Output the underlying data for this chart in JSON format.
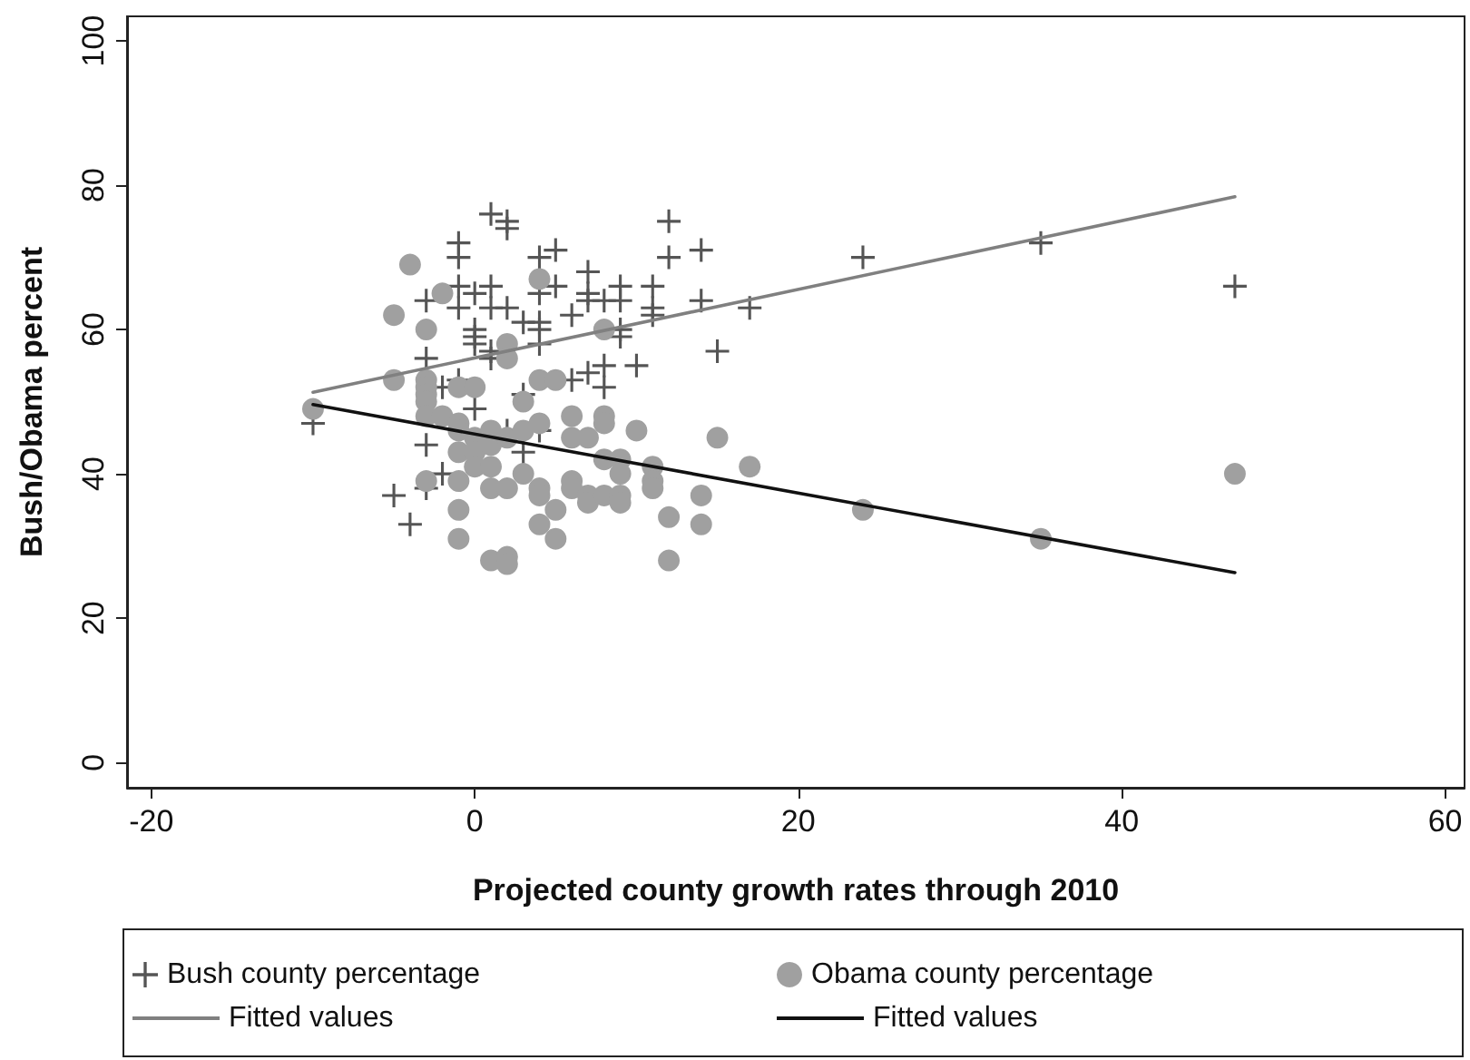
{
  "chart_data": {
    "type": "scatter",
    "xlabel": "Projected county growth rates through 2010",
    "ylabel": "Bush/Obama percent",
    "xlim": [
      -21.5,
      61.2
    ],
    "ylim": [
      -3.5,
      103.4
    ],
    "xticks": [
      -20,
      0,
      20,
      40,
      60
    ],
    "yticks": [
      0,
      20,
      40,
      60,
      80,
      100
    ],
    "grid": false,
    "legend": "bottom",
    "series": [
      {
        "name": "Bush county percentage",
        "marker": "cross",
        "color": "#555555",
        "x": [
          -10,
          -5,
          -4,
          -3,
          -3,
          -3,
          -3,
          -2,
          -2,
          -1,
          -1,
          -1,
          -1,
          -1,
          0,
          0,
          0,
          0,
          0,
          1,
          1,
          1,
          1,
          1,
          2,
          2,
          2,
          2,
          3,
          3,
          3,
          4,
          4,
          4,
          4,
          4,
          4,
          5,
          5,
          6,
          6,
          7,
          7,
          7,
          7,
          8,
          8,
          8,
          9,
          9,
          9,
          9,
          10,
          11,
          11,
          11,
          12,
          12,
          14,
          14,
          15,
          17,
          24,
          35,
          47
        ],
        "values": [
          47,
          37,
          33,
          64,
          56,
          44,
          38,
          40,
          52,
          72,
          70,
          66,
          63,
          53,
          65,
          60,
          59,
          58,
          49,
          76,
          66,
          63,
          57,
          56,
          75,
          74,
          63,
          46,
          61,
          51,
          43,
          70,
          65,
          61,
          60,
          58,
          46,
          71,
          66,
          62,
          53,
          68,
          65,
          64,
          54,
          64,
          55,
          52,
          66,
          64,
          60,
          59,
          55,
          66,
          63,
          62,
          75,
          70,
          71,
          64,
          57,
          63,
          70,
          72,
          66
        ]
      },
      {
        "name": "Obama county percentage",
        "marker": "circle",
        "color": "#a0a0a0",
        "x": [
          -10,
          -5,
          -5,
          -4,
          -3,
          -3,
          -3,
          -3,
          -3,
          -3,
          -3,
          -2,
          -2,
          -1,
          -1,
          -1,
          -1,
          -1,
          -1,
          -1,
          0,
          0,
          0,
          0,
          1,
          1,
          1,
          1,
          1,
          2,
          2,
          2,
          2,
          2,
          2,
          3,
          3,
          3,
          4,
          4,
          4,
          4,
          4,
          4,
          5,
          5,
          5,
          6,
          6,
          6,
          6,
          7,
          7,
          7,
          8,
          8,
          8,
          8,
          8,
          9,
          9,
          9,
          9,
          10,
          11,
          11,
          11,
          12,
          12,
          14,
          14,
          15,
          17,
          24,
          35,
          47
        ],
        "values": [
          49,
          62,
          53,
          69,
          60,
          53,
          52,
          51,
          50,
          48,
          39,
          65,
          48,
          52,
          47,
          46,
          43,
          39,
          35,
          31,
          52,
          45,
          43,
          41,
          46,
          44,
          41,
          38,
          28,
          58,
          56,
          45,
          38,
          28.5,
          27.5,
          50,
          46,
          40,
          67,
          53,
          47,
          38,
          37,
          33,
          53,
          35,
          31,
          48,
          45,
          39,
          38,
          45,
          37,
          36,
          60,
          48,
          47,
          42,
          37,
          42,
          40,
          37,
          36,
          46,
          41,
          39,
          38,
          34,
          28,
          37,
          33,
          45,
          41,
          35,
          31,
          40
        ]
      },
      {
        "name": "Fitted values",
        "type": "line",
        "marker": "none",
        "color": "#808080",
        "x": [
          -10,
          47
        ],
        "values": [
          51.3,
          78.4
        ]
      },
      {
        "name": "Fitted values",
        "type": "line",
        "marker": "none",
        "color": "#111111",
        "x": [
          -10,
          47
        ],
        "values": [
          49.6,
          26.3
        ]
      }
    ]
  }
}
